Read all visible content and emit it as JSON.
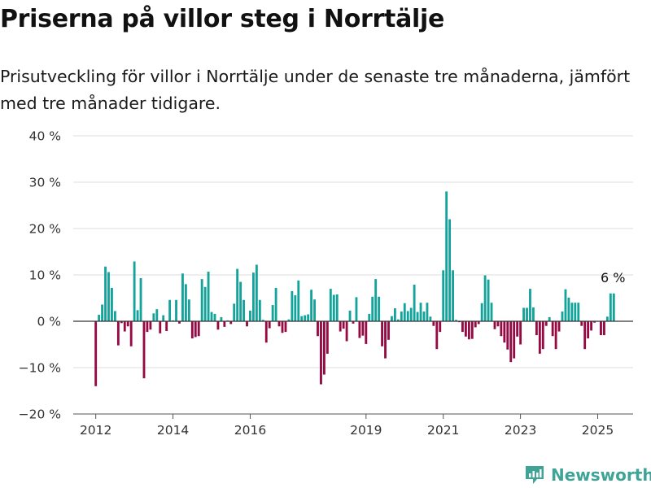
{
  "title": "Priserna på villor steg i Norrtälje",
  "subtitle": "Prisutveckling för villor i Norrtälje under de senaste tre månaderna, jämfört med tre månader tidigare.",
  "brand": {
    "name": "Newsworthy",
    "icon": "newsworthy-logo-icon"
  },
  "colors": {
    "positive": "#13a39a",
    "negative": "#950a43",
    "grid": "#dcdcdc",
    "zero_line": "#333333",
    "brand": "#3fa496"
  },
  "chart_data": {
    "type": "bar",
    "title": "Priserna på villor steg i Norrtälje",
    "xlabel": "",
    "ylabel": "",
    "xlim": [
      "2011-06",
      "2025-12"
    ],
    "ylim": [
      -20,
      40
    ],
    "y_ticks": [
      40,
      30,
      20,
      10,
      0,
      -10,
      -20
    ],
    "y_tick_labels": [
      "40 %",
      "30 %",
      "20 %",
      "10 %",
      "0 %",
      "−10 %",
      "−20 %"
    ],
    "x_ticks": [
      "2012-01",
      "2014-01",
      "2016-01",
      "2019-01",
      "2021-01",
      "2023-01",
      "2025-01"
    ],
    "x_tick_labels": [
      "2012",
      "2014",
      "2016",
      "2019",
      "2021",
      "2023",
      "2025"
    ],
    "grid": true,
    "legend": "none",
    "positive_color": "#13a39a",
    "negative_color": "#950a43",
    "x": [
      "2012-01",
      "2012-02",
      "2012-03",
      "2012-04",
      "2012-05",
      "2012-06",
      "2012-07",
      "2012-08",
      "2012-09",
      "2012-10",
      "2012-11",
      "2012-12",
      "2013-01",
      "2013-02",
      "2013-03",
      "2013-04",
      "2013-05",
      "2013-06",
      "2013-07",
      "2013-08",
      "2013-09",
      "2013-10",
      "2013-11",
      "2013-12",
      "2014-01",
      "2014-02",
      "2014-03",
      "2014-04",
      "2014-05",
      "2014-06",
      "2014-07",
      "2014-08",
      "2014-09",
      "2014-10",
      "2014-11",
      "2014-12",
      "2015-01",
      "2015-02",
      "2015-03",
      "2015-04",
      "2015-05",
      "2015-06",
      "2015-07",
      "2015-08",
      "2015-09",
      "2015-10",
      "2015-11",
      "2015-12",
      "2016-01",
      "2016-02",
      "2016-03",
      "2016-04",
      "2016-05",
      "2016-06",
      "2016-07",
      "2016-08",
      "2016-09",
      "2016-10",
      "2016-11",
      "2016-12",
      "2017-01",
      "2017-02",
      "2017-03",
      "2017-04",
      "2017-05",
      "2017-06",
      "2017-07",
      "2017-08",
      "2017-09",
      "2017-10",
      "2017-11",
      "2017-12",
      "2018-01",
      "2018-02",
      "2018-03",
      "2018-04",
      "2018-05",
      "2018-06",
      "2018-07",
      "2018-08",
      "2018-09",
      "2018-10",
      "2018-11",
      "2018-12",
      "2019-01",
      "2019-02",
      "2019-03",
      "2019-04",
      "2019-05",
      "2019-06",
      "2019-07",
      "2019-08",
      "2019-09",
      "2019-10",
      "2019-11",
      "2019-12",
      "2020-01",
      "2020-02",
      "2020-03",
      "2020-04",
      "2020-05",
      "2020-06",
      "2020-07",
      "2020-08",
      "2020-09",
      "2020-10",
      "2020-11",
      "2020-12",
      "2021-01",
      "2021-02",
      "2021-03",
      "2021-04",
      "2021-05",
      "2021-06",
      "2021-07",
      "2021-08",
      "2021-09",
      "2021-10",
      "2021-11",
      "2021-12",
      "2022-01",
      "2022-02",
      "2022-03",
      "2022-04",
      "2022-05",
      "2022-06",
      "2022-07",
      "2022-08",
      "2022-09",
      "2022-10",
      "2022-11",
      "2022-12",
      "2023-01",
      "2023-02",
      "2023-03",
      "2023-04",
      "2023-05",
      "2023-06",
      "2023-07",
      "2023-08",
      "2023-09",
      "2023-10",
      "2023-11",
      "2023-12",
      "2024-01",
      "2024-02",
      "2024-03",
      "2024-04",
      "2024-05",
      "2024-06",
      "2024-07",
      "2024-08",
      "2024-09",
      "2024-10",
      "2024-11",
      "2024-12",
      "2025-01",
      "2025-02",
      "2025-03",
      "2025-04",
      "2025-05",
      "2025-06"
    ],
    "values": [
      -14,
      1.4,
      3.6,
      11.8,
      10.6,
      7.2,
      2.2,
      -5.2,
      -0.4,
      -2.2,
      -1.1,
      -5.4,
      12.9,
      2.4,
      9.3,
      -12.3,
      -2.3,
      -1.8,
      1.7,
      2.6,
      -2.6,
      1.3,
      -2.1,
      4.6,
      0.2,
      4.6,
      -0.5,
      10.3,
      8,
      4.7,
      -3.7,
      -3.4,
      -3.2,
      9.1,
      7.4,
      10.7,
      2,
      1.6,
      -1.8,
      0.9,
      -1.2,
      0.2,
      -0.6,
      3.8,
      11.3,
      8.5,
      4.6,
      -1.1,
      2.3,
      10.5,
      12.2,
      4.6,
      0.3,
      -4.6,
      -1.5,
      3.5,
      7.2,
      -1.1,
      -2.5,
      -2.3,
      0.4,
      6.5,
      5.6,
      8.8,
      1.1,
      1.3,
      1.5,
      6.8,
      4.7,
      -3.2,
      -13.6,
      -11.5,
      -7,
      7,
      5.7,
      5.8,
      -2.2,
      -1.6,
      -4.3,
      2.3,
      -0.5,
      5.2,
      -3.6,
      -3.1,
      -4.9,
      1.6,
      5.3,
      9.1,
      5.3,
      -5.4,
      -8,
      -4,
      1.1,
      2.8,
      0.4,
      2.1,
      3.9,
      2.2,
      2.9,
      7.9,
      2,
      4,
      2.1,
      4,
      1,
      -1,
      -6,
      -2.3,
      11,
      28,
      22,
      11,
      0.3,
      -0.2,
      -2.3,
      -3.3,
      -3.9,
      -3.8,
      -1.3,
      -0.6,
      3.9,
      9.9,
      9,
      4,
      -1.7,
      -1.1,
      -3.2,
      -4.6,
      -6.1,
      -8.8,
      -8,
      -3.3,
      -5,
      2.9,
      2.9,
      7,
      3,
      -3,
      -7,
      -6,
      -1,
      0.9,
      -3.2,
      -6,
      -2.2,
      2.1,
      6.9,
      5.1,
      4,
      4,
      4,
      -1,
      -6,
      -3.7,
      -2,
      -0.3,
      0,
      -3,
      -3,
      1,
      6,
      6
    ],
    "annotations": [
      {
        "x": "2025-06",
        "text": "6 %"
      }
    ]
  }
}
